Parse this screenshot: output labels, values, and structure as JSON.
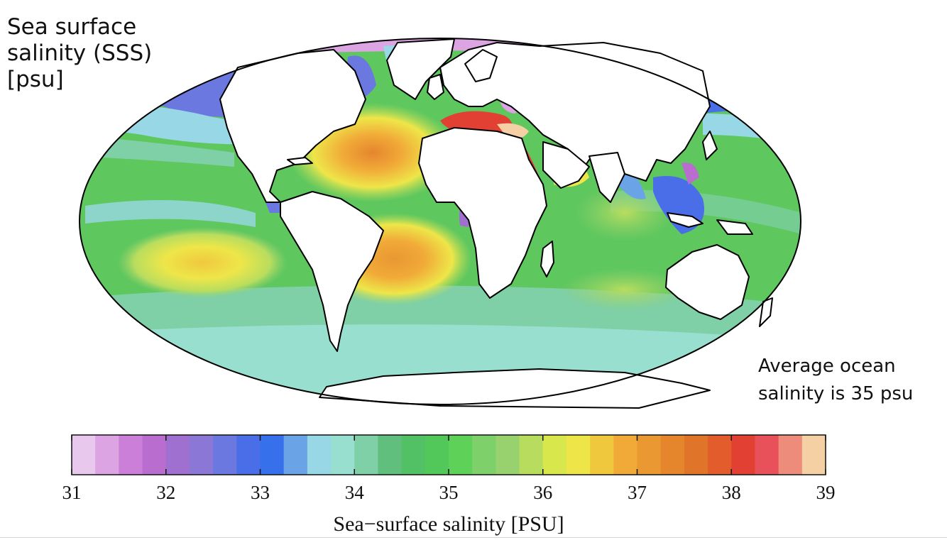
{
  "title": {
    "line1": "Sea surface",
    "line2": "salinity (SSS)",
    "line3": "[psu]"
  },
  "note": {
    "line1": "Average ocean",
    "line2": "salinity is 35 psu"
  },
  "colorbar": {
    "label": "Sea−surface salinity [PSU]",
    "min": 31,
    "max": 39,
    "step": 0.25,
    "ticks": [
      "31",
      "32",
      "33",
      "34",
      "35",
      "36",
      "37",
      "38",
      "39"
    ],
    "colors": [
      "#e8c8ec",
      "#dca4e3",
      "#cb7fd8",
      "#b86dcf",
      "#9f70d0",
      "#8b78d6",
      "#6b78df",
      "#4a6ee8",
      "#3670ea",
      "#6aa4e6",
      "#98d8e6",
      "#98dfcf",
      "#7fd0a6",
      "#60bf7c",
      "#52c065",
      "#52c85a",
      "#5ed158",
      "#7ed06a",
      "#98d26f",
      "#b8dd5e",
      "#d8e84c",
      "#eee649",
      "#f0c83e",
      "#f1aa38",
      "#e99832",
      "#e5862d",
      "#e07428",
      "#e25c2c",
      "#e24032",
      "#e9515a",
      "#ee8c7c",
      "#f5d0a4"
    ]
  },
  "map": {
    "projection": "Mollweide",
    "colors": {
      "ocean_base": "#5ec75e",
      "land": "#ffffff",
      "coast": "#000000"
    }
  }
}
